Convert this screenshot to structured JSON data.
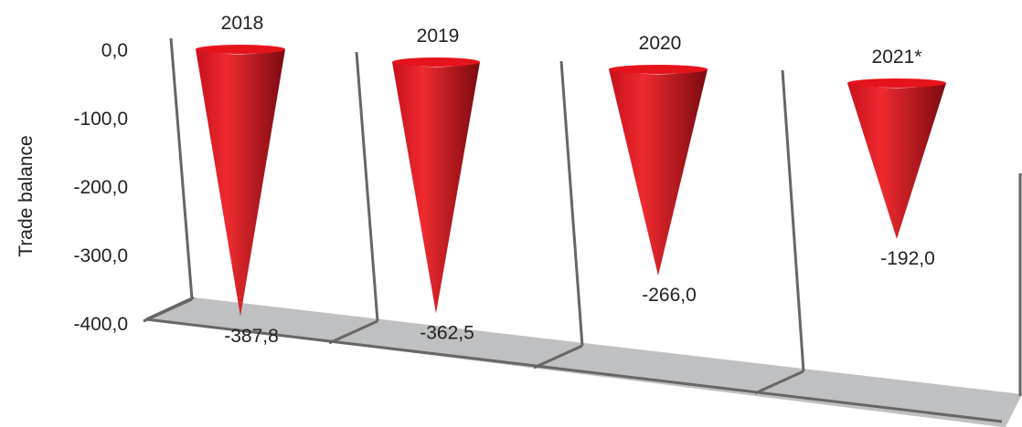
{
  "chart_data": {
    "type": "bar",
    "style": "3d-cone",
    "categories": [
      "2018",
      "2019",
      "2020",
      "2021*"
    ],
    "values": [
      -387.8,
      -362.5,
      -266.0,
      -192.0
    ],
    "value_labels": [
      "-387,8",
      "-362,5",
      "-266,0",
      "-192,0"
    ],
    "ylabel": "Trade balance",
    "yticks": [
      0,
      -100,
      -200,
      -300,
      -400
    ],
    "ytick_labels": [
      "0,0",
      "-100,0",
      "-200,0",
      "-300,0",
      "-400,0"
    ],
    "ylim": [
      -400,
      0
    ],
    "grid": false,
    "legend": "none",
    "colors": {
      "cone_dark": "#7a0a10",
      "cone_mid": "#c8101c",
      "cone_light": "#ee2a2f",
      "cone_top": "#e5141c",
      "floor": "#bfc0c2",
      "axis_line": "#666666"
    }
  }
}
